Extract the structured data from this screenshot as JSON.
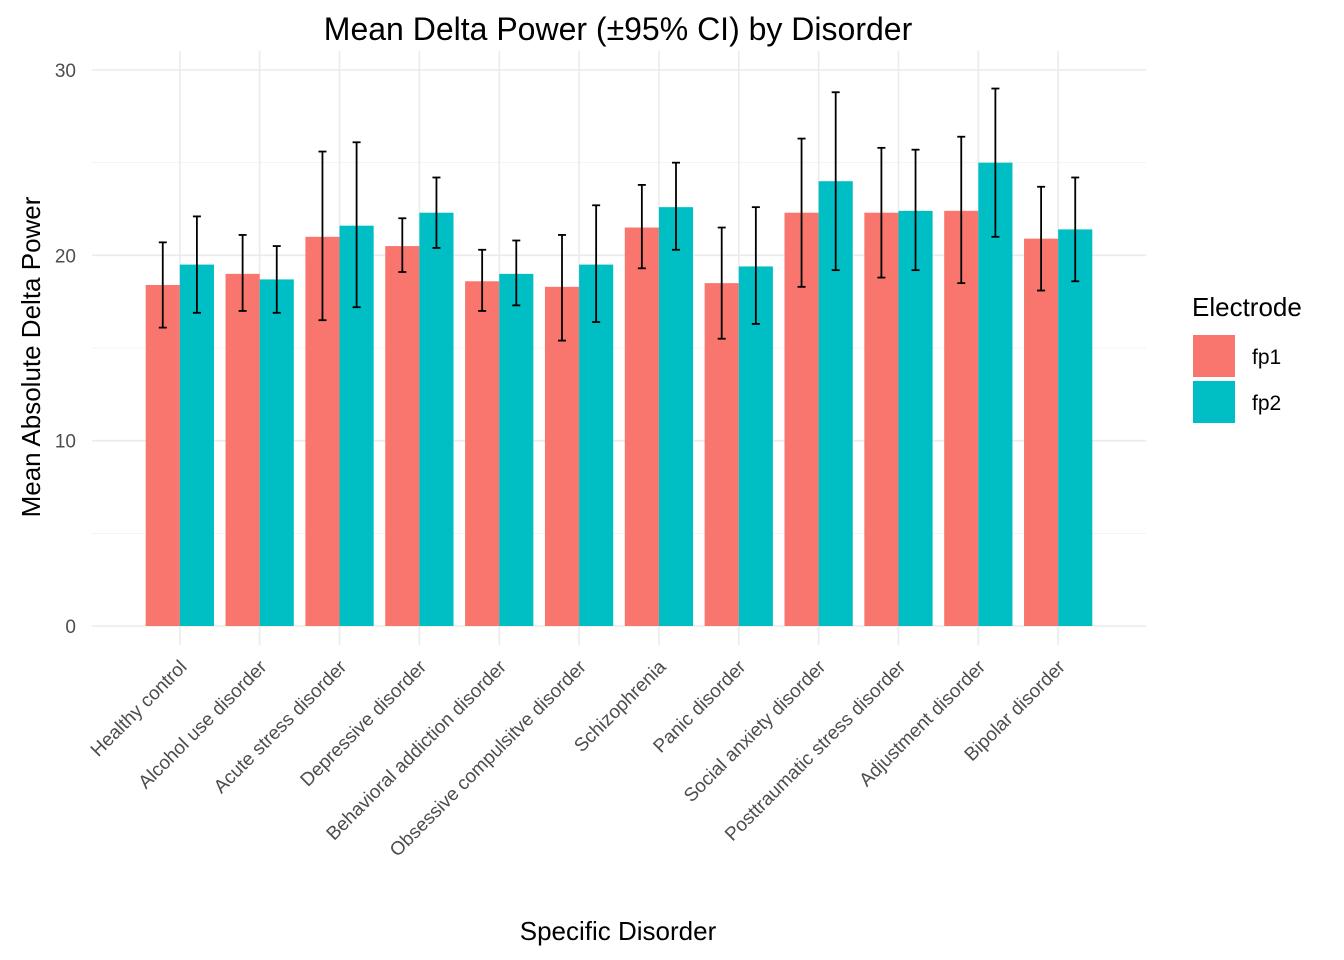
{
  "chart_data": {
    "type": "bar",
    "title": "Mean Delta Power (±95% CI) by Disorder",
    "xlabel": "Specific Disorder",
    "ylabel": "Mean Absolute Delta Power",
    "ylim": [
      0,
      30
    ],
    "yticks": [
      0,
      10,
      20,
      30
    ],
    "grid": true,
    "legend": {
      "title": "Electrode",
      "placement": "right"
    },
    "categories": [
      "Healthy control",
      "Alcohol use disorder",
      "Acute stress disorder",
      "Depressive disorder",
      "Behavioral addiction disorder",
      "Obsessive compulsitve disorder",
      "Schizophrenia",
      "Panic disorder",
      "Social anxiety disorder",
      "Posttraumatic stress disorder",
      "Adjustment disorder",
      "Bipolar disorder"
    ],
    "series": [
      {
        "name": "fp1",
        "color": "#F8766D",
        "values": [
          18.4,
          19.0,
          21.0,
          20.5,
          18.6,
          18.3,
          21.5,
          18.5,
          22.3,
          22.3,
          22.4,
          20.9
        ],
        "ci_low": [
          16.1,
          17.0,
          16.5,
          19.1,
          17.0,
          15.4,
          19.3,
          15.5,
          18.3,
          18.8,
          18.5,
          18.1
        ],
        "ci_high": [
          20.7,
          21.1,
          25.6,
          22.0,
          20.3,
          21.1,
          23.8,
          21.5,
          26.3,
          25.8,
          26.4,
          23.7
        ]
      },
      {
        "name": "fp2",
        "color": "#00BFC4",
        "values": [
          19.5,
          18.7,
          21.6,
          22.3,
          19.0,
          19.5,
          22.6,
          19.4,
          24.0,
          22.4,
          25.0,
          21.4
        ],
        "ci_low": [
          16.9,
          16.9,
          17.2,
          20.4,
          17.3,
          16.4,
          20.3,
          16.3,
          19.2,
          19.2,
          21.0,
          18.6
        ],
        "ci_high": [
          22.1,
          20.5,
          26.1,
          24.2,
          20.8,
          22.7,
          25.0,
          22.6,
          28.8,
          25.7,
          29.0,
          24.2
        ]
      }
    ]
  }
}
